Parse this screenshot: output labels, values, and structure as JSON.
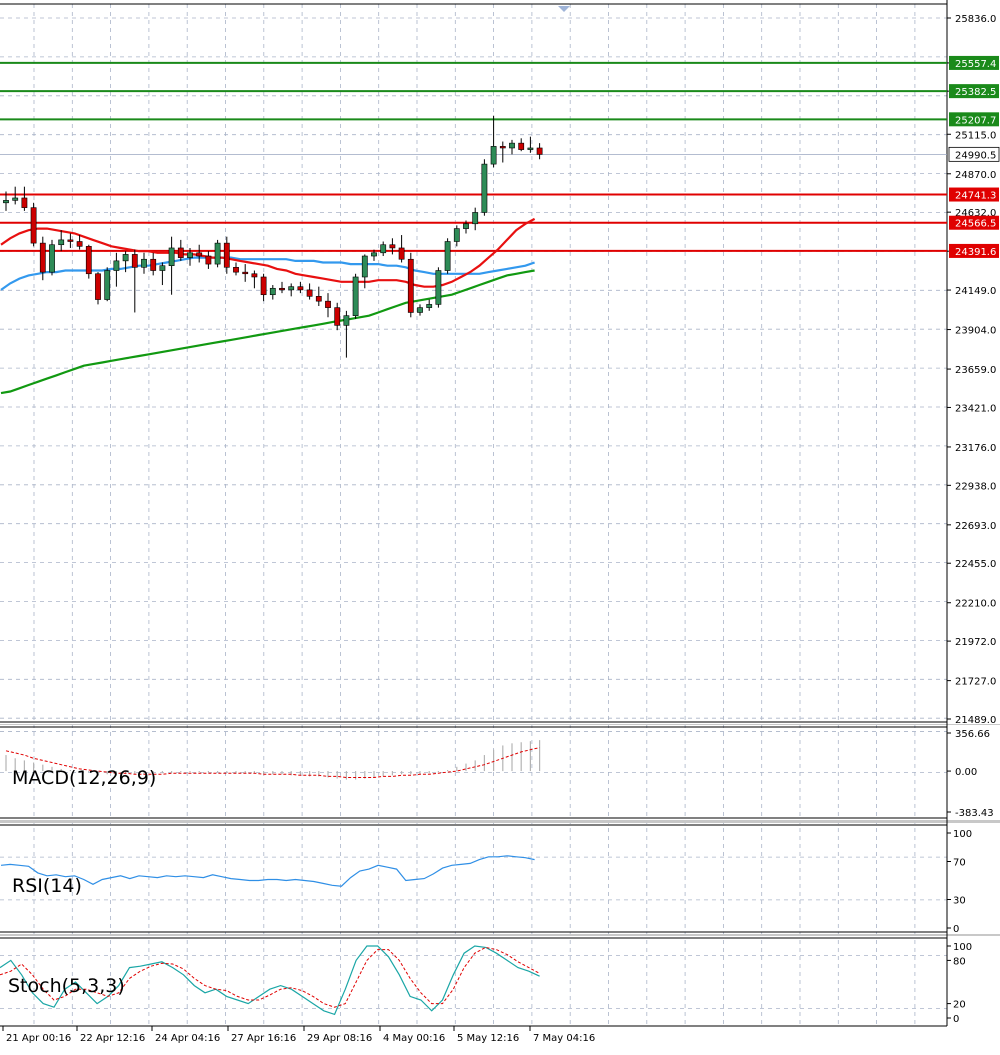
{
  "chart_data": {
    "type": "candlestick",
    "timeframe_note": "",
    "price_axis": {
      "min": 21489,
      "max": 25836,
      "ticks": [
        "25836.0",
        "25557.4",
        "25382.5",
        "25115.0",
        "24870.0",
        "24632.0",
        "24390.0",
        "24149.0",
        "23904.0",
        "23659.0",
        "23421.0",
        "23176.0",
        "22938.0",
        "22693.0",
        "22455.0",
        "22210.0",
        "21972.0",
        "21727.0",
        "21489.0"
      ]
    },
    "time_axis_labels": [
      "21 Apr 00:16",
      "22 Apr 12:16",
      "24 Apr 04:16",
      "27 Apr 16:16",
      "29 Apr 08:16",
      "4 May 00:16",
      "5 May 12:16",
      "7 May 04:16"
    ],
    "current_price": "24990.5",
    "colors": {
      "bull": "#2e8b57",
      "bear": "#cc0000",
      "resistance": "#1a8a1a",
      "support": "#e00000",
      "ma_red": "#e81010",
      "ma_blue": "#3399ee",
      "ma_green": "#119911",
      "grid": "#aab4c8"
    },
    "resistance_levels": [
      "25557.4",
      "25382.5",
      "25207.7"
    ],
    "support_levels": [
      "24741.3",
      "24566.5",
      "24391.6"
    ],
    "candles": [
      {
        "o": 24690,
        "h": 24760,
        "l": 24640,
        "c": 24705
      },
      {
        "o": 24705,
        "h": 24790,
        "l": 24680,
        "c": 24720
      },
      {
        "o": 24720,
        "h": 24790,
        "l": 24640,
        "c": 24660
      },
      {
        "o": 24660,
        "h": 24690,
        "l": 24420,
        "c": 24440
      },
      {
        "o": 24440,
        "h": 24480,
        "l": 24210,
        "c": 24260
      },
      {
        "o": 24260,
        "h": 24460,
        "l": 24240,
        "c": 24430
      },
      {
        "o": 24430,
        "h": 24520,
        "l": 24390,
        "c": 24460
      },
      {
        "o": 24460,
        "h": 24500,
        "l": 24410,
        "c": 24450
      },
      {
        "o": 24450,
        "h": 24490,
        "l": 24400,
        "c": 24420
      },
      {
        "o": 24420,
        "h": 24430,
        "l": 24220,
        "c": 24250
      },
      {
        "o": 24250,
        "h": 24260,
        "l": 24060,
        "c": 24090
      },
      {
        "o": 24090,
        "h": 24290,
        "l": 24080,
        "c": 24270
      },
      {
        "o": 24270,
        "h": 24380,
        "l": 24170,
        "c": 24330
      },
      {
        "o": 24330,
        "h": 24390,
        "l": 24260,
        "c": 24370
      },
      {
        "o": 24370,
        "h": 24400,
        "l": 24010,
        "c": 24290
      },
      {
        "o": 24290,
        "h": 24380,
        "l": 24250,
        "c": 24340
      },
      {
        "o": 24340,
        "h": 24380,
        "l": 24240,
        "c": 24270
      },
      {
        "o": 24270,
        "h": 24320,
        "l": 24180,
        "c": 24300
      },
      {
        "o": 24300,
        "h": 24480,
        "l": 24120,
        "c": 24410
      },
      {
        "o": 24410,
        "h": 24460,
        "l": 24330,
        "c": 24350
      },
      {
        "o": 24350,
        "h": 24410,
        "l": 24300,
        "c": 24380
      },
      {
        "o": 24380,
        "h": 24430,
        "l": 24320,
        "c": 24360
      },
      {
        "o": 24360,
        "h": 24390,
        "l": 24280,
        "c": 24310
      },
      {
        "o": 24310,
        "h": 24460,
        "l": 24290,
        "c": 24440
      },
      {
        "o": 24440,
        "h": 24480,
        "l": 24250,
        "c": 24290
      },
      {
        "o": 24290,
        "h": 24320,
        "l": 24240,
        "c": 24260
      },
      {
        "o": 24260,
        "h": 24310,
        "l": 24200,
        "c": 24250
      },
      {
        "o": 24250,
        "h": 24270,
        "l": 24160,
        "c": 24230
      },
      {
        "o": 24230,
        "h": 24250,
        "l": 24080,
        "c": 24120
      },
      {
        "o": 24120,
        "h": 24180,
        "l": 24090,
        "c": 24160
      },
      {
        "o": 24160,
        "h": 24200,
        "l": 24130,
        "c": 24150
      },
      {
        "o": 24150,
        "h": 24190,
        "l": 24110,
        "c": 24170
      },
      {
        "o": 24170,
        "h": 24200,
        "l": 24130,
        "c": 24150
      },
      {
        "o": 24150,
        "h": 24190,
        "l": 24090,
        "c": 24110
      },
      {
        "o": 24110,
        "h": 24170,
        "l": 24050,
        "c": 24080
      },
      {
        "o": 24080,
        "h": 24130,
        "l": 23980,
        "c": 24040
      },
      {
        "o": 24040,
        "h": 24070,
        "l": 23900,
        "c": 23930
      },
      {
        "o": 23930,
        "h": 24020,
        "l": 23730,
        "c": 23990
      },
      {
        "o": 23990,
        "h": 24250,
        "l": 23970,
        "c": 24230
      },
      {
        "o": 24230,
        "h": 24370,
        "l": 24160,
        "c": 24360
      },
      {
        "o": 24360,
        "h": 24400,
        "l": 24330,
        "c": 24380
      },
      {
        "o": 24380,
        "h": 24450,
        "l": 24360,
        "c": 24430
      },
      {
        "o": 24430,
        "h": 24470,
        "l": 24370,
        "c": 24410
      },
      {
        "o": 24410,
        "h": 24490,
        "l": 24320,
        "c": 24340
      },
      {
        "o": 24340,
        "h": 24380,
        "l": 23980,
        "c": 24010
      },
      {
        "o": 24010,
        "h": 24060,
        "l": 23990,
        "c": 24040
      },
      {
        "o": 24040,
        "h": 24090,
        "l": 24020,
        "c": 24060
      },
      {
        "o": 24060,
        "h": 24290,
        "l": 24040,
        "c": 24270
      },
      {
        "o": 24270,
        "h": 24470,
        "l": 24250,
        "c": 24450
      },
      {
        "o": 24450,
        "h": 24550,
        "l": 24420,
        "c": 24530
      },
      {
        "o": 24530,
        "h": 24580,
        "l": 24500,
        "c": 24560
      },
      {
        "o": 24560,
        "h": 24660,
        "l": 24520,
        "c": 24630
      },
      {
        "o": 24630,
        "h": 24960,
        "l": 24610,
        "c": 24930
      },
      {
        "o": 24930,
        "h": 25230,
        "l": 24910,
        "c": 25040
      },
      {
        "o": 25040,
        "h": 25070,
        "l": 24940,
        "c": 25030
      },
      {
        "o": 25030,
        "h": 25080,
        "l": 24990,
        "c": 25060
      },
      {
        "o": 25060,
        "h": 25090,
        "l": 25010,
        "c": 25020
      },
      {
        "o": 25020,
        "h": 25100,
        "l": 25000,
        "c": 25030
      },
      {
        "o": 25030,
        "h": 25060,
        "l": 24960,
        "c": 24990
      }
    ],
    "ma_red": [
      24430,
      24470,
      24500,
      24520,
      24530,
      24530,
      24520,
      24510,
      24500,
      24480,
      24460,
      24440,
      24420,
      24410,
      24400,
      24390,
      24390,
      24380,
      24380,
      24380,
      24370,
      24370,
      24360,
      24350,
      24350,
      24340,
      24330,
      24320,
      24310,
      24300,
      24280,
      24270,
      24250,
      24240,
      24230,
      24220,
      24210,
      24200,
      24200,
      24200,
      24200,
      24210,
      24210,
      24210,
      24200,
      24180,
      24170,
      24170,
      24180,
      24200,
      24230,
      24260,
      24300,
      24350,
      24400,
      24460,
      24520,
      24560,
      24590
    ],
    "ma_blue": [
      24150,
      24190,
      24220,
      24240,
      24250,
      24260,
      24260,
      24270,
      24270,
      24270,
      24270,
      24270,
      24280,
      24280,
      24290,
      24300,
      24300,
      24310,
      24320,
      24330,
      24340,
      24350,
      24350,
      24350,
      24350,
      24350,
      24340,
      24340,
      24340,
      24340,
      24340,
      24340,
      24330,
      24330,
      24330,
      24320,
      24320,
      24320,
      24310,
      24310,
      24310,
      24310,
      24300,
      24300,
      24290,
      24270,
      24260,
      24250,
      24250,
      24250,
      24250,
      24250,
      24250,
      24260,
      24270,
      24280,
      24290,
      24300,
      24320
    ],
    "ma_green": [
      23510,
      23520,
      23540,
      23560,
      23580,
      23600,
      23620,
      23640,
      23660,
      23680,
      23690,
      23700,
      23710,
      23720,
      23730,
      23740,
      23750,
      23760,
      23770,
      23780,
      23790,
      23800,
      23810,
      23820,
      23830,
      23840,
      23850,
      23860,
      23870,
      23880,
      23890,
      23900,
      23910,
      23920,
      23930,
      23940,
      23950,
      23960,
      23970,
      23980,
      23990,
      24010,
      24030,
      24050,
      24070,
      24080,
      24090,
      24100,
      24110,
      24120,
      24140,
      24160,
      24180,
      24200,
      24220,
      24240,
      24250,
      24260,
      24270
    ],
    "macd": {
      "label": "MACD(12,26,9)",
      "ticks": [
        "356.66",
        "0.00",
        "-383.43"
      ],
      "min": -383.43,
      "max": 356.66,
      "hist": [
        150,
        120,
        100,
        80,
        60,
        40,
        20,
        10,
        0,
        -10,
        -20,
        -30,
        -30,
        -30,
        -30,
        -30,
        -20,
        -20,
        -20,
        -10,
        -10,
        -10,
        -10,
        -10,
        -10,
        -20,
        -20,
        -20,
        -30,
        -30,
        -30,
        -40,
        -40,
        -50,
        -50,
        -60,
        -70,
        -80,
        -80,
        -70,
        -60,
        -50,
        -40,
        -30,
        -30,
        -30,
        -20,
        -10,
        10,
        40,
        70,
        100,
        150,
        200,
        240,
        260,
        270,
        280,
        290
      ],
      "signal": [
        190,
        170,
        150,
        120,
        100,
        80,
        60,
        40,
        20,
        10,
        0,
        -10,
        -20,
        -20,
        -30,
        -30,
        -30,
        -30,
        -20,
        -20,
        -20,
        -20,
        -20,
        -20,
        -20,
        -20,
        -20,
        -20,
        -30,
        -30,
        -30,
        -30,
        -40,
        -40,
        -40,
        -50,
        -50,
        -60,
        -60,
        -60,
        -60,
        -50,
        -50,
        -40,
        -40,
        -30,
        -30,
        -20,
        -10,
        0,
        20,
        40,
        60,
        90,
        120,
        150,
        180,
        200,
        220
      ]
    },
    "rsi": {
      "label": "RSI(14)",
      "ticks": [
        "100",
        "70",
        "30",
        "0"
      ],
      "values": [
        66,
        67,
        66,
        65,
        58,
        55,
        56,
        54,
        55,
        51,
        46,
        51,
        53,
        55,
        52,
        55,
        54,
        53,
        55,
        54,
        55,
        54,
        53,
        56,
        54,
        52,
        51,
        50,
        50,
        51,
        51,
        50,
        51,
        50,
        49,
        47,
        45,
        44,
        53,
        60,
        62,
        66,
        64,
        62,
        50,
        51,
        52,
        57,
        63,
        66,
        67,
        68,
        72,
        75,
        75,
        76,
        75,
        74,
        72
      ]
    },
    "stoch": {
      "label": "Stoch(5,3,3)",
      "ticks": [
        "100",
        "80",
        "20",
        "0"
      ],
      "k": [
        70,
        80,
        60,
        35,
        20,
        15,
        40,
        50,
        35,
        20,
        30,
        45,
        70,
        72,
        75,
        78,
        70,
        60,
        45,
        35,
        40,
        30,
        25,
        20,
        30,
        40,
        45,
        40,
        30,
        20,
        10,
        5,
        40,
        80,
        100,
        100,
        85,
        60,
        30,
        25,
        10,
        25,
        60,
        90,
        100,
        98,
        90,
        80,
        70,
        65,
        58
      ],
      "d": [
        60,
        65,
        75,
        60,
        40,
        25,
        30,
        40,
        40,
        35,
        30,
        35,
        55,
        65,
        72,
        76,
        75,
        68,
        55,
        45,
        40,
        38,
        30,
        25,
        25,
        32,
        40,
        42,
        38,
        30,
        20,
        15,
        20,
        50,
        80,
        95,
        95,
        80,
        55,
        35,
        20,
        20,
        40,
        70,
        90,
        98,
        95,
        88,
        78,
        70,
        62
      ]
    }
  }
}
